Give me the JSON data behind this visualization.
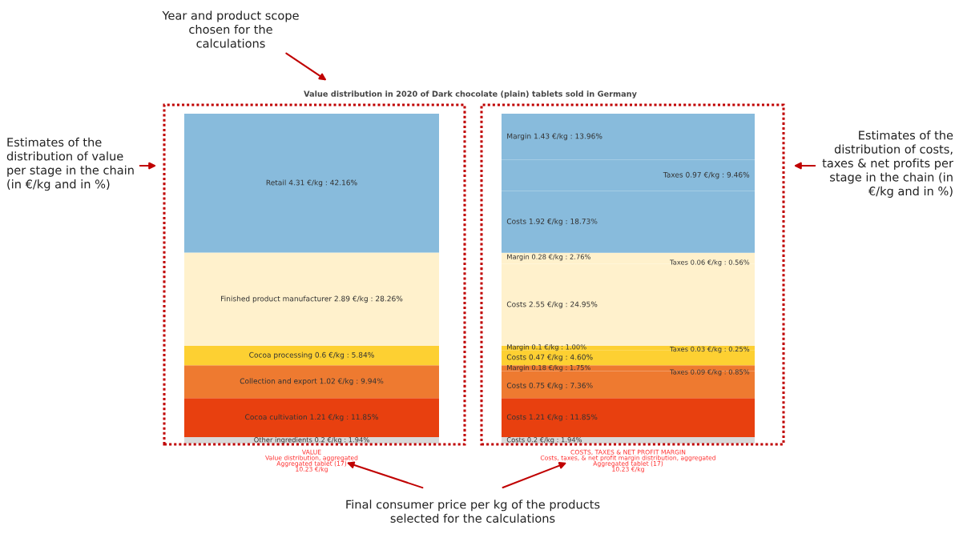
{
  "chart_data": [
    {
      "type": "bar",
      "stacked": true,
      "title": "Value distribution in 2020 of Dark chocolate (plain) tablets sold in Germany",
      "categories": [
        null
      ],
      "xlabel": "VALUE\nValue distribution, aggregated\nAggregated tablet (17)\n10.23 €/kg",
      "annotations": [
        "Year and product scope chosen for the calculations",
        "Estimates of the distribution of value per stage in the chain (in €/kg and in %)",
        "Estimates of the distribution of costs, taxes & net profits per stage in the chain (in €/kg and in %)",
        "Final consumer price per kg of the products selected for the calculations"
      ],
      "series": [
        {
          "color": "#d9d9d9",
          "values": [
            0.2
          ],
          "value_labels": [
            "Other ingredients 0.2 €/kg : 1.94%"
          ]
        },
        {
          "color": "#e8400f",
          "values": [
            1.21
          ],
          "value_labels": [
            "Cocoa cultivation 1.21 €/kg : 11.85%"
          ]
        },
        {
          "color": "#ee7a30",
          "values": [
            1.02
          ],
          "value_labels": [
            "Collection and export 1.02 €/kg : 9.94%"
          ]
        },
        {
          "color": "#fdd032",
          "values": [
            0.6
          ],
          "value_labels": [
            "Cocoa processing 0.6 €/kg : 5.84%"
          ]
        },
        {
          "color": "#fff1cc",
          "values": [
            2.89
          ],
          "value_labels": [
            "Finished product manufacturer 2.89 €/kg : 28.26%"
          ]
        },
        {
          "color": "#88bbdc",
          "values": [
            4.31
          ],
          "value_labels": [
            "Retail 4.31 €/kg : 42.16%"
          ]
        }
      ]
    },
    {
      "type": "bar",
      "stacked": true,
      "categories": [
        null
      ],
      "xlabel": "COSTS, TAXES & NET PROFIT MARGIN\nCosts, taxes, & net profit margin distribution, aggregated\nAggregated tablet (17)\n10.23 €/kg",
      "series": [
        {
          "color": "#d9d9d9",
          "values": [
            0.2
          ],
          "value_labels": [
            "Costs 0.2 €/kg : 1.94%"
          ]
        },
        {
          "color": "#e8400f",
          "values": [
            1.21
          ],
          "value_labels": [
            "Costs 1.21 €/kg : 11.85%"
          ]
        },
        {
          "color": "#ee7a30",
          "values": [
            0.75
          ],
          "value_labels": [
            "Costs 0.75 €/kg : 7.36%"
          ]
        },
        {
          "color": "#ee7a30",
          "values": [
            0.09
          ],
          "value_labels": [
            "Taxes 0.09 €/kg : 0.85%"
          ]
        },
        {
          "color": "#ee7a30",
          "values": [
            0.18
          ],
          "value_labels": [
            "Margin 0.18 €/kg : 1.75%"
          ]
        },
        {
          "color": "#fdd032",
          "values": [
            0.47
          ],
          "value_labels": [
            "Costs 0.47 €/kg : 4.60%"
          ]
        },
        {
          "color": "#fdd032",
          "values": [
            0.03
          ],
          "value_labels": [
            "Taxes 0.03 €/kg : 0.25%"
          ]
        },
        {
          "color": "#fdd032",
          "values": [
            0.1
          ],
          "value_labels": [
            "Margin 0.1 €/kg : 1.00%"
          ]
        },
        {
          "color": "#fff1cc",
          "values": [
            2.55
          ],
          "value_labels": [
            "Costs 2.55 €/kg : 24.95%"
          ]
        },
        {
          "color": "#fff1cc",
          "values": [
            0.06
          ],
          "value_labels": [
            "Taxes 0.06 €/kg : 0.56%"
          ]
        },
        {
          "color": "#fff1cc",
          "values": [
            0.28
          ],
          "value_labels": [
            "Margin 0.28 €/kg : 2.76%"
          ]
        },
        {
          "color": "#88bbdc",
          "values": [
            1.92
          ],
          "value_labels": [
            "Costs 1.92 €/kg : 18.73%"
          ]
        },
        {
          "color": "#88bbdc",
          "values": [
            0.97
          ],
          "value_labels": [
            "Taxes 0.97 €/kg : 9.46%"
          ]
        },
        {
          "color": "#88bbdc",
          "values": [
            1.43
          ],
          "value_labels": [
            "Margin 1.43 €/kg : 13.96%"
          ]
        }
      ]
    }
  ]
}
